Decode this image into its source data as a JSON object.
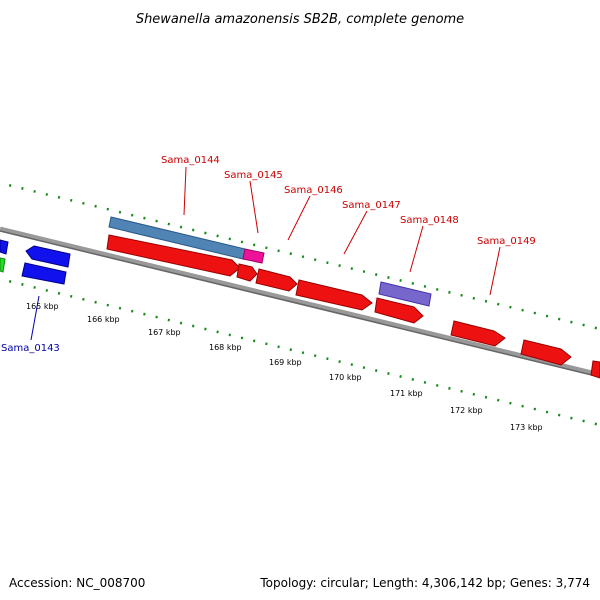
{
  "title": "Shewanella amazonensis SB2B, complete genome",
  "footer": {
    "accession": "Accession: NC_008700",
    "summary": "Topology: circular; Length: 4,306,142 bp; Genes: 3,774"
  },
  "colors": {
    "backbone": "#7f7f7f",
    "tick_mark": "#1a8a1a",
    "gene_red": "#ee1111",
    "gene_blue": "#1111ee",
    "gene_green": "#22dd22",
    "feature_steelblue": "#4f84b4",
    "feature_pink": "#ee1199",
    "feature_purple": "#7766cc",
    "label_red": "#cc0000",
    "label_blue": "#0000aa"
  },
  "scale_labels": [
    "165 kbp",
    "166 kbp",
    "167 kbp",
    "168 kbp",
    "169 kbp",
    "170 kbp",
    "171 kbp",
    "172 kbp",
    "173 kbp"
  ],
  "gene_labels": [
    {
      "text": "Sama_0143",
      "color": "blue"
    },
    {
      "text": "Sama_0144",
      "color": "red"
    },
    {
      "text": "Sama_0145",
      "color": "red"
    },
    {
      "text": "Sama_0146",
      "color": "red"
    },
    {
      "text": "Sama_0147",
      "color": "red"
    },
    {
      "text": "Sama_0148",
      "color": "red"
    },
    {
      "text": "Sama_0149",
      "color": "red"
    }
  ]
}
